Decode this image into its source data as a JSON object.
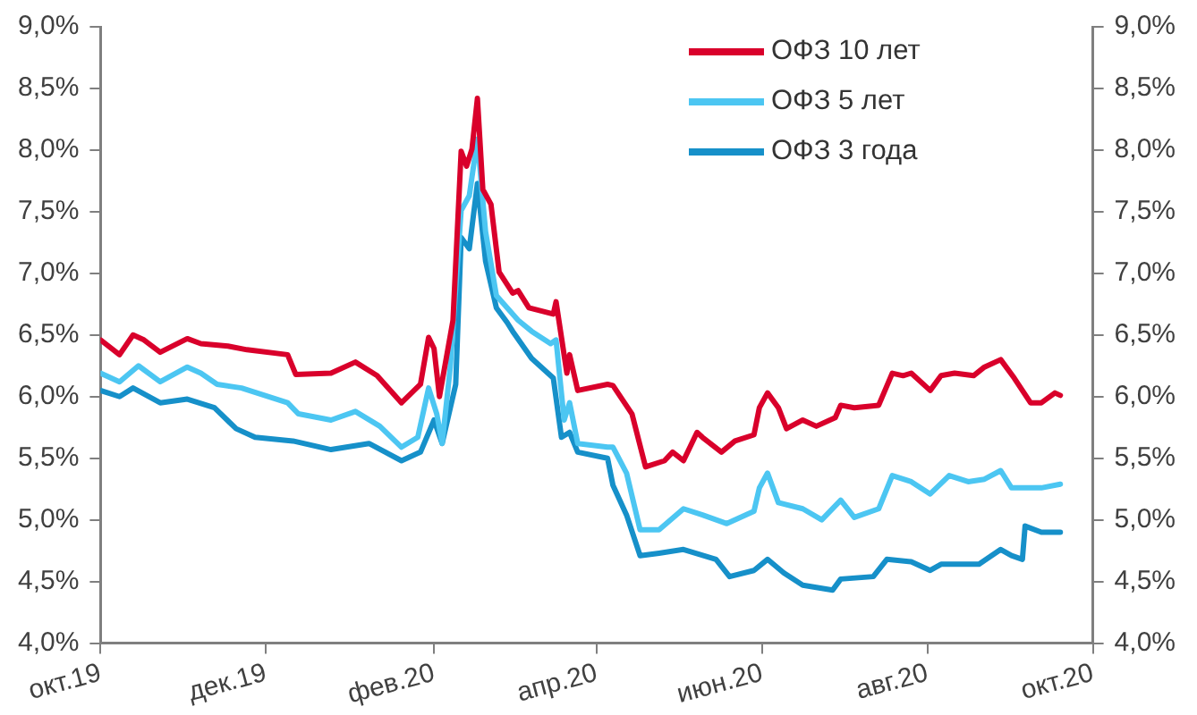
{
  "chart_data": {
    "type": "line",
    "legend": "top right",
    "grid": false,
    "marker": "none",
    "line_style": "solid",
    "xlim": [
      "2019-10-01",
      "2020-10-01"
    ],
    "xticks": [
      {
        "value": "2019-10-01",
        "label": "окт.19"
      },
      {
        "value": "2019-12-01",
        "label": "дек.19"
      },
      {
        "value": "2020-02-01",
        "label": "фев.20"
      },
      {
        "value": "2020-04-01",
        "label": "апр.20"
      },
      {
        "value": "2020-06-01",
        "label": "июн.20"
      },
      {
        "value": "2020-08-01",
        "label": "авг.20"
      },
      {
        "value": "2020-10-01",
        "label": "окт.20"
      }
    ],
    "ylim": [
      4,
      9
    ],
    "yticks": [
      {
        "value": 4,
        "label": "4,0%"
      },
      {
        "value": 4.5,
        "label": "4,5%"
      },
      {
        "value": 5,
        "label": "5,0%"
      },
      {
        "value": 5.5,
        "label": "5,5%"
      },
      {
        "value": 6,
        "label": "6,0%"
      },
      {
        "value": 6.5,
        "label": "6,5%"
      },
      {
        "value": 7,
        "label": "7,0%"
      },
      {
        "value": 7.5,
        "label": "7,5%"
      },
      {
        "value": 8,
        "label": "8,0%"
      },
      {
        "value": 8.5,
        "label": "8,5%"
      },
      {
        "value": 9,
        "label": "9,0%"
      }
    ],
    "y2lim": [
      4,
      9
    ],
    "y2ticks": [
      {
        "value": 4,
        "label": "4,0%"
      },
      {
        "value": 4.5,
        "label": "4,5%"
      },
      {
        "value": 5,
        "label": "5,0%"
      },
      {
        "value": 5.5,
        "label": "5,5%"
      },
      {
        "value": 6,
        "label": "6,0%"
      },
      {
        "value": 6.5,
        "label": "6,5%"
      },
      {
        "value": 7,
        "label": "7,0%"
      },
      {
        "value": 7.5,
        "label": "7,5%"
      },
      {
        "value": 8,
        "label": "8,0%"
      },
      {
        "value": 8.5,
        "label": "8,5%"
      },
      {
        "value": 9,
        "label": "9,0%"
      }
    ],
    "series": [
      {
        "name": "ОФЗ 10 лет",
        "color": "#d9002b",
        "x": [
          "2019-10-01",
          "2019-10-08",
          "2019-10-13",
          "2019-10-17",
          "2019-10-23",
          "2019-11-02",
          "2019-11-07",
          "2019-11-17",
          "2019-11-24",
          "2019-12-09",
          "2019-12-12",
          "2019-12-25",
          "2020-01-03",
          "2020-01-11",
          "2020-01-20",
          "2020-01-27",
          "2020-01-30",
          "2020-02-01",
          "2020-02-03",
          "2020-02-08",
          "2020-02-11",
          "2020-02-13",
          "2020-02-15",
          "2020-02-17",
          "2020-02-19",
          "2020-02-22",
          "2020-02-25",
          "2020-03-01",
          "2020-03-03",
          "2020-03-07",
          "2020-03-16",
          "2020-03-17",
          "2020-03-21",
          "2020-03-22",
          "2020-03-25",
          "2020-04-05",
          "2020-04-07",
          "2020-04-14",
          "2020-04-19",
          "2020-04-26",
          "2020-04-29",
          "2020-05-03",
          "2020-05-08",
          "2020-05-10",
          "2020-05-17",
          "2020-05-22",
          "2020-05-29",
          "2020-05-31",
          "2020-06-03",
          "2020-06-07",
          "2020-06-10",
          "2020-06-16",
          "2020-06-21",
          "2020-06-28",
          "2020-06-30",
          "2020-07-05",
          "2020-07-14",
          "2020-07-19",
          "2020-07-23",
          "2020-07-26",
          "2020-08-02",
          "2020-08-06",
          "2020-08-11",
          "2020-08-18",
          "2020-08-22",
          "2020-08-28",
          "2020-09-02",
          "2020-09-08",
          "2020-09-12",
          "2020-09-17",
          "2020-09-19"
        ],
        "values": [
          6.46,
          6.34,
          6.5,
          6.46,
          6.36,
          6.47,
          6.43,
          6.41,
          6.38,
          6.34,
          6.18,
          6.19,
          6.28,
          6.17,
          5.95,
          6.1,
          6.48,
          6.39,
          6.0,
          6.62,
          7.99,
          7.87,
          8.01,
          8.42,
          7.68,
          7.56,
          7.01,
          6.84,
          6.86,
          6.72,
          6.67,
          6.77,
          6.19,
          6.34,
          6.05,
          6.1,
          6.09,
          5.86,
          5.43,
          5.48,
          5.55,
          5.48,
          5.71,
          5.67,
          5.55,
          5.64,
          5.69,
          5.91,
          6.03,
          5.91,
          5.74,
          5.81,
          5.76,
          5.83,
          5.93,
          5.91,
          5.93,
          6.19,
          6.17,
          6.19,
          6.05,
          6.17,
          6.19,
          6.17,
          6.24,
          6.3,
          6.15,
          5.95,
          5.95,
          6.03,
          6.01
        ]
      },
      {
        "name": "ОФЗ 5 лет",
        "color": "#4cc6f2",
        "x": [
          "2019-10-01",
          "2019-10-08",
          "2019-10-15",
          "2019-10-23",
          "2019-11-02",
          "2019-11-07",
          "2019-11-13",
          "2019-11-22",
          "2019-12-09",
          "2019-12-13",
          "2019-12-25",
          "2020-01-03",
          "2020-01-12",
          "2020-01-20",
          "2020-01-26",
          "2020-01-30",
          "2020-02-02",
          "2020-02-04",
          "2020-02-07",
          "2020-02-11",
          "2020-02-14",
          "2020-02-17",
          "2020-02-20",
          "2020-02-24",
          "2020-02-28",
          "2020-03-03",
          "2020-03-08",
          "2020-03-15",
          "2020-03-17",
          "2020-03-20",
          "2020-03-22",
          "2020-03-25",
          "2020-04-05",
          "2020-04-07",
          "2020-04-12",
          "2020-04-17",
          "2020-04-24",
          "2020-05-03",
          "2020-05-10",
          "2020-05-19",
          "2020-05-29",
          "2020-05-31",
          "2020-06-03",
          "2020-06-07",
          "2020-06-16",
          "2020-06-23",
          "2020-06-30",
          "2020-07-05",
          "2020-07-14",
          "2020-07-19",
          "2020-07-26",
          "2020-08-02",
          "2020-08-09",
          "2020-08-16",
          "2020-08-22",
          "2020-08-28",
          "2020-09-01",
          "2020-09-12",
          "2020-09-19"
        ],
        "values": [
          6.19,
          6.12,
          6.25,
          6.12,
          6.24,
          6.19,
          6.1,
          6.07,
          5.95,
          5.86,
          5.81,
          5.88,
          5.76,
          5.59,
          5.67,
          6.07,
          5.86,
          5.62,
          6.24,
          7.51,
          7.63,
          8.09,
          7.34,
          6.82,
          6.72,
          6.62,
          6.53,
          6.43,
          6.46,
          5.81,
          5.95,
          5.62,
          5.59,
          5.59,
          5.38,
          4.92,
          4.92,
          5.09,
          5.04,
          4.97,
          5.07,
          5.26,
          5.38,
          5.14,
          5.09,
          5.0,
          5.16,
          5.02,
          5.09,
          5.36,
          5.31,
          5.21,
          5.36,
          5.31,
          5.33,
          5.4,
          5.26,
          5.26,
          5.29
        ]
      },
      {
        "name": "ОФЗ 3 года",
        "color": "#1690c9",
        "x": [
          "2019-10-01",
          "2019-10-08",
          "2019-10-13",
          "2019-10-23",
          "2019-11-02",
          "2019-11-12",
          "2019-11-20",
          "2019-11-27",
          "2019-12-11",
          "2019-12-25",
          "2020-01-08",
          "2020-01-20",
          "2020-01-27",
          "2020-02-01",
          "2020-02-04",
          "2020-02-09",
          "2020-02-11",
          "2020-02-14",
          "2020-02-17",
          "2020-02-20",
          "2020-02-24",
          "2020-02-28",
          "2020-03-01",
          "2020-03-08",
          "2020-03-16",
          "2020-03-19",
          "2020-03-22",
          "2020-03-25",
          "2020-04-05",
          "2020-04-07",
          "2020-04-12",
          "2020-04-17",
          "2020-04-24",
          "2020-05-03",
          "2020-05-15",
          "2020-05-20",
          "2020-05-29",
          "2020-06-03",
          "2020-06-09",
          "2020-06-16",
          "2020-06-27",
          "2020-06-30",
          "2020-07-12",
          "2020-07-17",
          "2020-07-26",
          "2020-08-02",
          "2020-08-06",
          "2020-08-20",
          "2020-08-28",
          "2020-09-01",
          "2020-09-05",
          "2020-09-06",
          "2020-09-12",
          "2020-09-19"
        ],
        "values": [
          6.05,
          6.0,
          6.07,
          5.95,
          5.98,
          5.91,
          5.74,
          5.67,
          5.64,
          5.57,
          5.62,
          5.48,
          5.55,
          5.81,
          5.62,
          6.1,
          7.29,
          7.2,
          7.73,
          7.1,
          6.72,
          6.6,
          6.53,
          6.31,
          6.15,
          5.67,
          5.71,
          5.55,
          5.5,
          5.28,
          5.04,
          4.71,
          4.73,
          4.76,
          4.68,
          4.54,
          4.59,
          4.68,
          4.57,
          4.47,
          4.43,
          4.52,
          4.54,
          4.68,
          4.66,
          4.59,
          4.64,
          4.64,
          4.76,
          4.71,
          4.68,
          4.95,
          4.9,
          4.9
        ]
      }
    ]
  }
}
